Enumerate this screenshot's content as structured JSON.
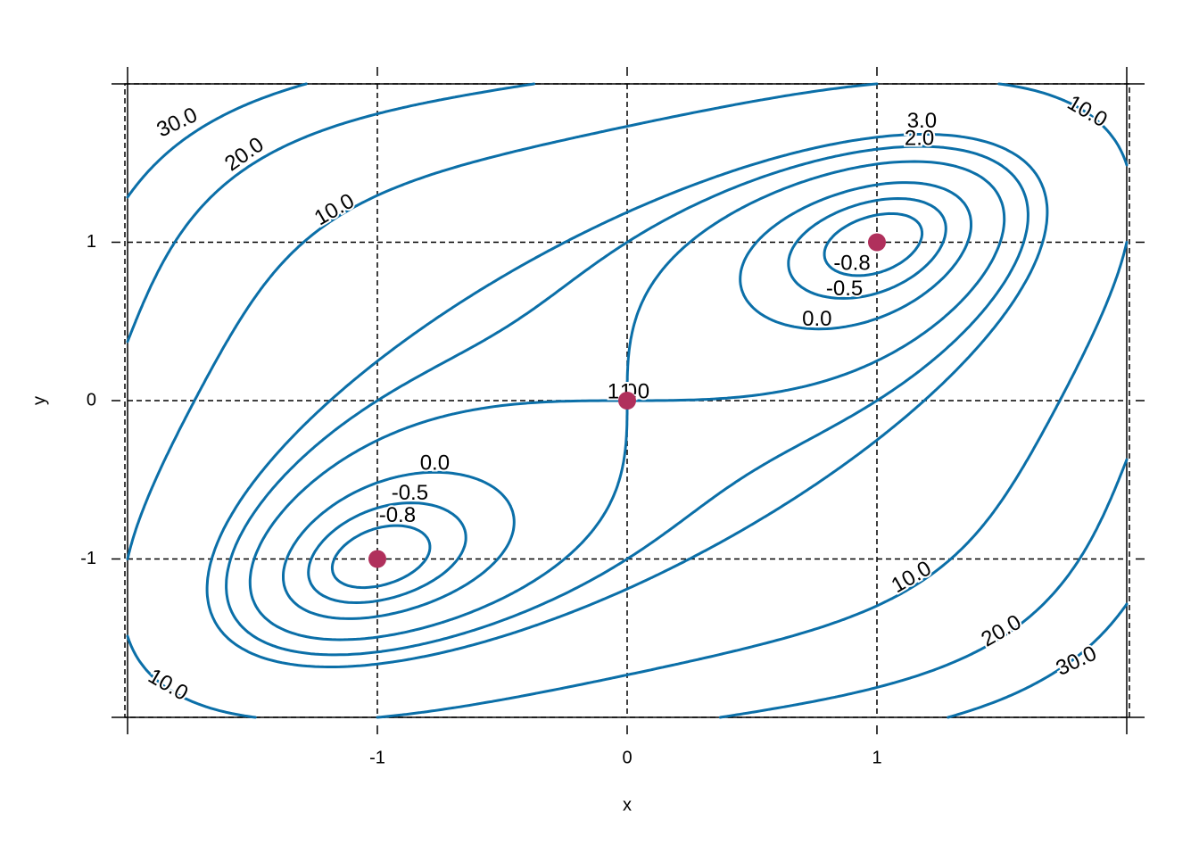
{
  "chart_data": {
    "type": "contour",
    "x_label": "x",
    "y_label": "y",
    "xlim": [
      -2,
      2
    ],
    "ylim": [
      -2,
      2
    ],
    "xticks": [
      -1,
      0,
      1
    ],
    "yticks": [
      -1,
      0,
      1
    ],
    "grid": true,
    "line_color": "#0b6fa8",
    "levels": [
      {
        "value": -0.8,
        "label": "-0.8"
      },
      {
        "value": -0.5,
        "label": "-0.5"
      },
      {
        "value": 0,
        "label": "0.0"
      },
      {
        "value": 1,
        "label": "1.0"
      },
      {
        "value": 2,
        "label": "2.0"
      },
      {
        "value": 3,
        "label": "3.0"
      },
      {
        "value": 10,
        "label": "10.0"
      },
      {
        "value": 20,
        "label": "20.0"
      },
      {
        "value": 30,
        "label": "30.0"
      }
    ],
    "points": {
      "color": "#b0305c",
      "x": [
        -1,
        0,
        1
      ],
      "y": [
        -1,
        0,
        1
      ]
    }
  }
}
